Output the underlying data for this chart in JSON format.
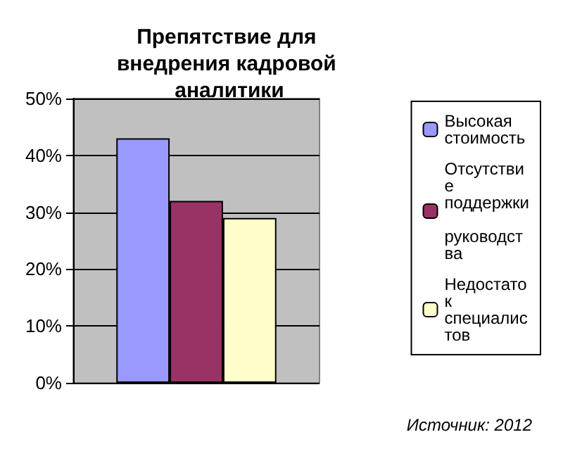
{
  "chart_data": {
    "type": "bar",
    "title": "Препятствие для внедрения кадровой аналитики",
    "categories": [
      null
    ],
    "series": [
      {
        "name": "Высокая стоимость",
        "color": "#9999ff",
        "values": [
          43
        ]
      },
      {
        "name": "Отсутствие поддержки руководства",
        "color": "#993366",
        "values": [
          32
        ]
      },
      {
        "name": "Недостаток специалистов",
        "color": "#ffffcc",
        "values": [
          29
        ]
      }
    ],
    "ylim": [
      0,
      50
    ],
    "yticks": [
      {
        "value": 0,
        "label": "0%"
      },
      {
        "value": 10,
        "label": "10%"
      },
      {
        "value": 20,
        "label": "20%"
      },
      {
        "value": 30,
        "label": "30%"
      },
      {
        "value": 40,
        "label": "40%"
      },
      {
        "value": 50,
        "label": "50%"
      }
    ],
    "grid": "y",
    "legend": "right",
    "annotations": [
      "Источник: 2012"
    ]
  }
}
